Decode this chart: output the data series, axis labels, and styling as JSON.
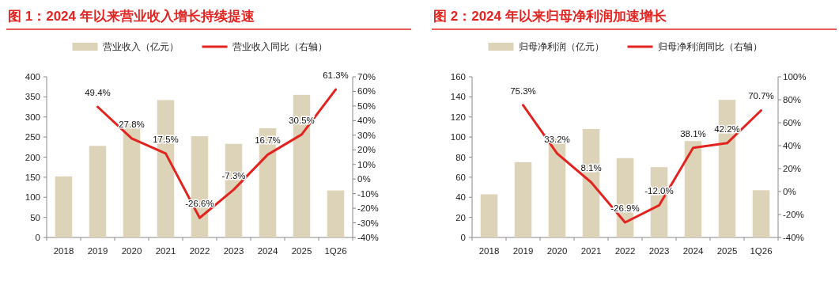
{
  "chart_data": [
    {
      "type": "bar",
      "title": "图 1：2024 年以来营业收入增长持续提速",
      "categories": [
        "2018",
        "2019",
        "2020",
        "2021",
        "2022",
        "2023",
        "2024",
        "2025",
        "1Q26"
      ],
      "legend": "top",
      "ylim": [
        0,
        400
      ],
      "yticks": [
        0,
        50,
        100,
        150,
        200,
        250,
        300,
        350,
        400
      ],
      "y2lim": [
        -40,
        70
      ],
      "y2ticks": [
        {
          "value": -40,
          "label": "-40%"
        },
        {
          "value": -30,
          "label": "-30%"
        },
        {
          "value": -20,
          "label": "-20%"
        },
        {
          "value": -10,
          "label": "-10%"
        },
        {
          "value": 0,
          "label": "0%"
        },
        {
          "value": 10,
          "label": "10%"
        },
        {
          "value": 20,
          "label": "20%"
        },
        {
          "value": 30,
          "label": "30%"
        },
        {
          "value": 40,
          "label": "40%"
        },
        {
          "value": 50,
          "label": "50%"
        },
        {
          "value": 60,
          "label": "60%"
        },
        {
          "value": 70,
          "label": "70%"
        }
      ],
      "series": [
        {
          "name": "营业收入（亿元）",
          "color": "#ddd3b9",
          "values": [
            152,
            228,
            283,
            342,
            252,
            233,
            272,
            355,
            117
          ]
        },
        {
          "name": "营业收入同比（右轴）",
          "type": "line",
          "axis": "y2",
          "color": "#e3231f",
          "values": [
            null,
            49.4,
            27.8,
            17.5,
            -26.6,
            -7.3,
            16.7,
            30.5,
            61.3
          ],
          "value_labels": [
            null,
            "49.4%",
            "27.8%",
            "17.5%",
            "-26.6%",
            "-7.3%",
            "16.7%",
            "30.5%",
            "61.3%"
          ]
        }
      ]
    },
    {
      "type": "bar",
      "title": "图 2：2024 年以来归母净利润加速增长",
      "categories": [
        "2018",
        "2019",
        "2020",
        "2021",
        "2022",
        "2023",
        "2024",
        "2025",
        "1Q26"
      ],
      "legend": "top",
      "ylim": [
        0,
        160
      ],
      "yticks": [
        0,
        20,
        40,
        60,
        80,
        100,
        120,
        140,
        160
      ],
      "y2lim": [
        -40,
        100
      ],
      "y2ticks": [
        {
          "value": -40,
          "label": "-40%"
        },
        {
          "value": -20,
          "label": "-20%"
        },
        {
          "value": 0,
          "label": "0%"
        },
        {
          "value": 20,
          "label": "20%"
        },
        {
          "value": 40,
          "label": "40%"
        },
        {
          "value": 60,
          "label": "60%"
        },
        {
          "value": 80,
          "label": "80%"
        },
        {
          "value": 100,
          "label": "100%"
        }
      ],
      "series": [
        {
          "name": "归母净利润（亿元）",
          "color": "#ddd3b9",
          "values": [
            43,
            75,
            99,
            108,
            79,
            70,
            96,
            137,
            47
          ]
        },
        {
          "name": "归母净利润同比（右轴）",
          "type": "line",
          "axis": "y2",
          "color": "#e3231f",
          "values": [
            null,
            75.3,
            33.2,
            8.1,
            -26.9,
            -12.0,
            38.1,
            42.2,
            70.7
          ],
          "value_labels": [
            null,
            "75.3%",
            "33.2%",
            "8.1%",
            "-26.9%",
            "-12.0%",
            "38.1%",
            "42.2%",
            "70.7%"
          ]
        }
      ]
    }
  ]
}
